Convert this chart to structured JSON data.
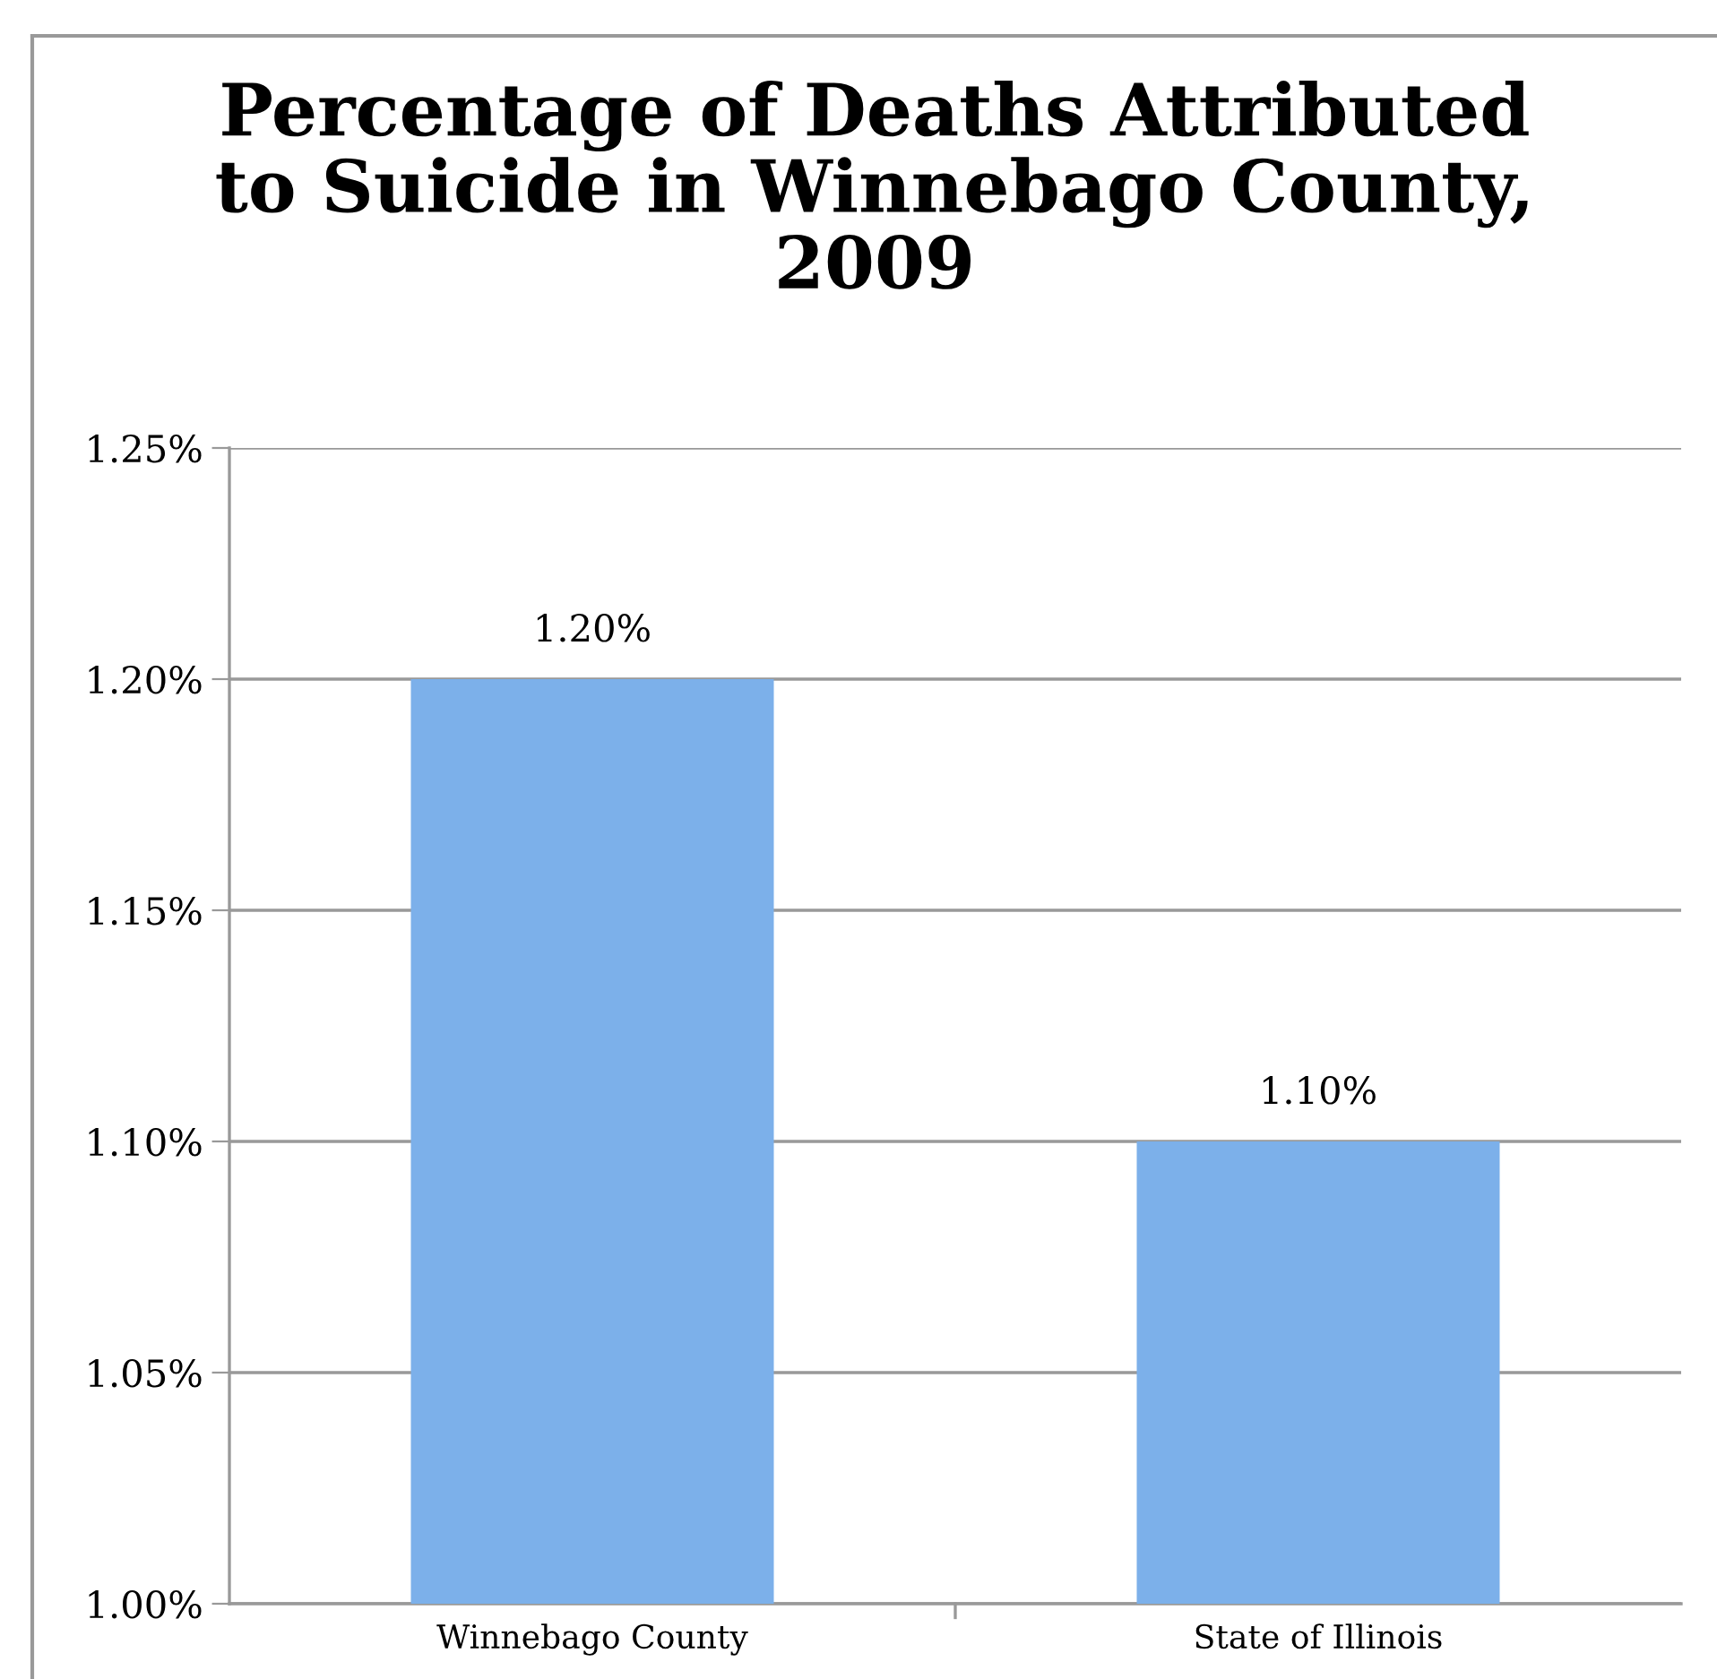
{
  "chart_data": {
    "type": "bar",
    "title": "Percentage of Deaths Attributed\nto Suicide in Winnebago County,\n2009",
    "categories": [
      "Winnebago County",
      "State of Illinois"
    ],
    "values": [
      1.2,
      1.1
    ],
    "value_labels": [
      "1.20%",
      "1.10%"
    ],
    "color": "#7cb0ea",
    "ylim": [
      1.0,
      1.25
    ],
    "yticks": [
      {
        "value": 1.0,
        "label": "1.00%"
      },
      {
        "value": 1.05,
        "label": "1.05%"
      },
      {
        "value": 1.1,
        "label": "1.10%"
      },
      {
        "value": 1.15,
        "label": "1.15%"
      },
      {
        "value": 1.2,
        "label": "1.20%"
      },
      {
        "value": 1.25,
        "label": "1.25%"
      }
    ],
    "grid": "y",
    "legend": false
  }
}
